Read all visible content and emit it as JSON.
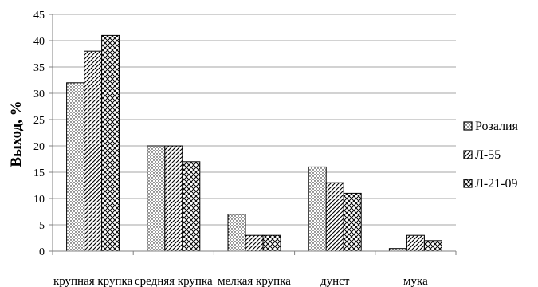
{
  "chart_data": {
    "type": "bar",
    "ylabel": "Выход, %",
    "xlabel": "",
    "ylim": [
      0,
      45
    ],
    "ytick_step": 5,
    "yticks": [
      "0",
      "5",
      "10",
      "15",
      "20",
      "25",
      "30",
      "35",
      "40",
      "45"
    ],
    "grid": true,
    "legend_position": "right",
    "categories": [
      "крупная крупка",
      "средняя крупка",
      "мелкая крупка",
      "дунст",
      "мука"
    ],
    "series": [
      {
        "name": "Розалия",
        "pattern": "dots",
        "values": [
          32,
          20,
          7,
          16,
          0.5
        ]
      },
      {
        "name": "Л-55",
        "pattern": "diagonal",
        "values": [
          38,
          20,
          3,
          13,
          3
        ]
      },
      {
        "name": "Л-21-09",
        "pattern": "crosshatch",
        "values": [
          41,
          17,
          3,
          11,
          2
        ]
      }
    ],
    "colors": {
      "bar_fill": "#ffffff",
      "bar_stroke": "#000000",
      "grid": "#a6a6a6",
      "axis": "#808080"
    }
  }
}
